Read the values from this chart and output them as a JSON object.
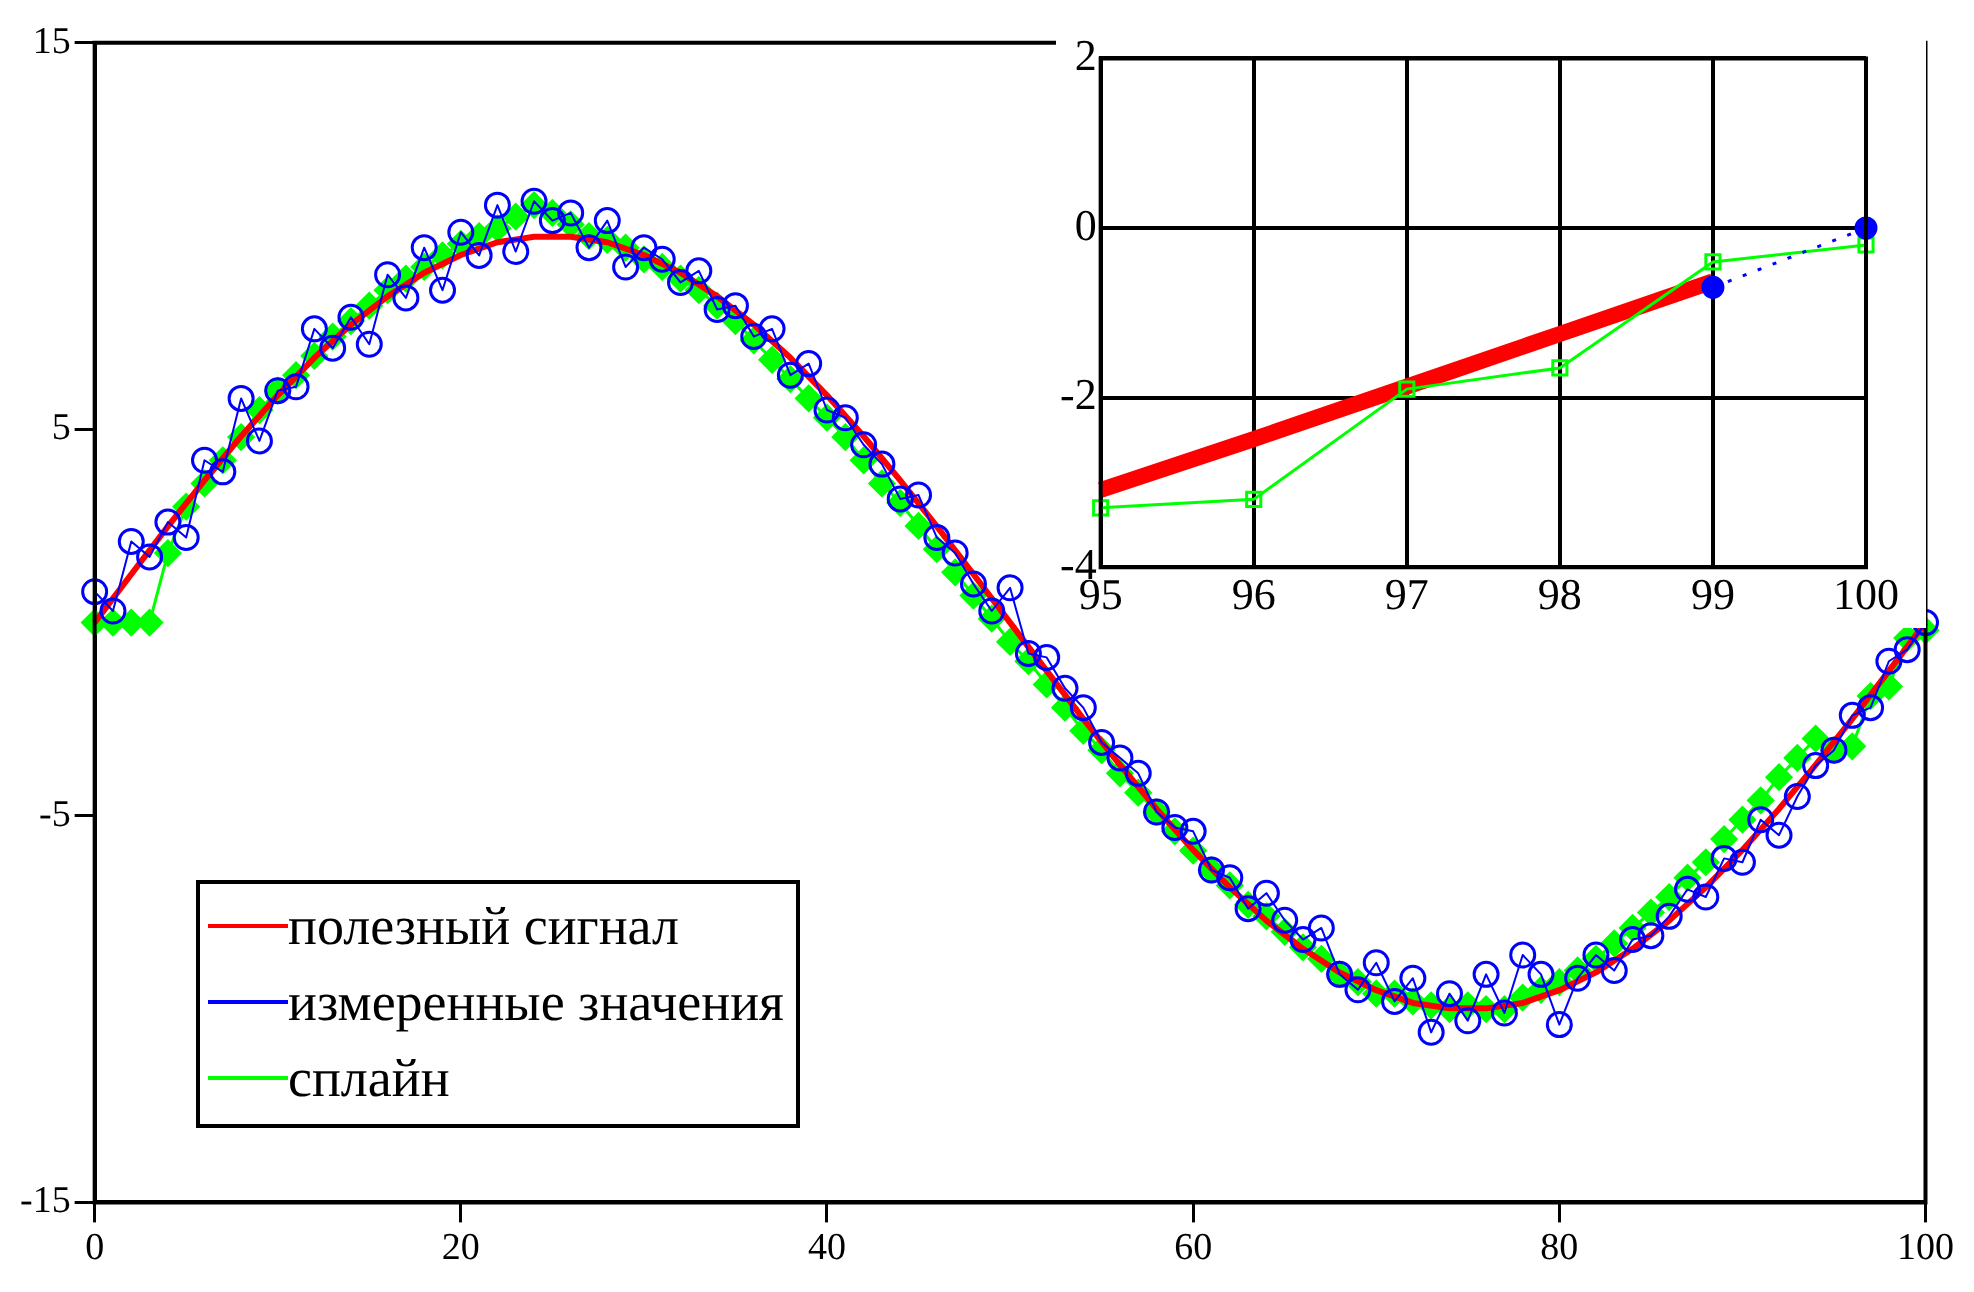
{
  "chart_data": [
    {
      "type": "line",
      "xlim": [
        0,
        100
      ],
      "xticks": [
        0,
        20,
        40,
        60,
        80,
        100
      ],
      "ylim": [
        -15,
        15
      ],
      "yticks": [
        -15,
        -5,
        5,
        15
      ],
      "grid": false,
      "legend": "bottom left",
      "series": [
        {
          "name": "полезный сигнал",
          "color": "#ff0000",
          "marker": "none",
          "line_style": "solid",
          "x": [
            0,
            2,
            4,
            6,
            8,
            10,
            12,
            14,
            16,
            18,
            20,
            22,
            24,
            26,
            28,
            30,
            32,
            34,
            36,
            38,
            40,
            42,
            44,
            46,
            48,
            50,
            52,
            54,
            56,
            58,
            60,
            62,
            64,
            66,
            68,
            70,
            72,
            74,
            76,
            78,
            80,
            82,
            84,
            86,
            88,
            90,
            92,
            94,
            96,
            98,
            100
          ],
          "values": [
            0,
            1.25,
            2.49,
            3.68,
            4.82,
            5.88,
            6.85,
            7.71,
            8.44,
            9.05,
            9.51,
            9.84,
            9.98,
            9.98,
            9.84,
            9.51,
            9.05,
            8.44,
            7.71,
            6.85,
            5.88,
            4.82,
            3.68,
            2.49,
            1.25,
            0,
            -1.25,
            -2.49,
            -3.68,
            -4.82,
            -5.88,
            -6.85,
            -7.71,
            -8.44,
            -9.05,
            -9.51,
            -9.84,
            -9.98,
            -9.98,
            -9.84,
            -9.51,
            -9.05,
            -8.44,
            -7.71,
            -6.85,
            -5.88,
            -4.82,
            -3.68,
            -2.49,
            -1.25,
            0
          ]
        },
        {
          "name": "измеренные значения",
          "color": "#0000ff",
          "marker": "circle",
          "line_style": "solid",
          "x": [
            0,
            1,
            2,
            3,
            4,
            5,
            6,
            7,
            8,
            9,
            10,
            11,
            12,
            13,
            14,
            15,
            16,
            17,
            18,
            19,
            20,
            21,
            22,
            23,
            24,
            25,
            26,
            27,
            28,
            29,
            30,
            31,
            32,
            33,
            34,
            35,
            36,
            37,
            38,
            39,
            40,
            41,
            42,
            43,
            44,
            45,
            46,
            47,
            48,
            49,
            50,
            51,
            52,
            53,
            54,
            55,
            56,
            57,
            58,
            59,
            60,
            61,
            62,
            63,
            64,
            65,
            66,
            67,
            68,
            69,
            70,
            71,
            72,
            73,
            74,
            75,
            76,
            77,
            78,
            79,
            80,
            81,
            82,
            83,
            84,
            85,
            86,
            87,
            88,
            89,
            90,
            91,
            92,
            93,
            94,
            95,
            96,
            97,
            98,
            99,
            100
          ],
          "values": [
            0.8,
            0.3,
            2.1,
            1.7,
            2.6,
            2.2,
            4.2,
            3.9,
            5.8,
            4.7,
            6.0,
            6.1,
            7.6,
            7.1,
            7.9,
            7.2,
            9.0,
            8.4,
            9.7,
            8.6,
            10.1,
            9.5,
            10.8,
            9.6,
            10.9,
            10.4,
            10.6,
            9.7,
            10.4,
            9.2,
            9.7,
            9.4,
            8.8,
            9.1,
            8.1,
            8.2,
            7.4,
            7.6,
            6.4,
            6.7,
            5.5,
            5.3,
            4.6,
            4.1,
            3.2,
            3.3,
            2.2,
            1.8,
            1.0,
            0.3,
            0.9,
            -0.8,
            -0.9,
            -1.7,
            -2.2,
            -3.1,
            -3.5,
            -3.9,
            -4.9,
            -5.3,
            -5.4,
            -6.4,
            -6.6,
            -7.4,
            -7.0,
            -7.7,
            -8.2,
            -7.9,
            -9.1,
            -9.5,
            -8.8,
            -9.8,
            -9.2,
            -10.6,
            -9.6,
            -10.3,
            -9.1,
            -10.1,
            -8.6,
            -9.1,
            -10.4,
            -9.2,
            -8.6,
            -9.0,
            -8.2,
            -8.1,
            -7.6,
            -6.9,
            -7.1,
            -6.1,
            -6.2,
            -5.1,
            -5.5,
            -4.5,
            -3.7,
            -3.3,
            -2.4,
            -2.2,
            -1.0,
            -0.7,
            0.0
          ]
        },
        {
          "name": "сплайн",
          "color": "#00ff00",
          "marker": "diamond",
          "line_style": "solid",
          "x": [
            0,
            1,
            2,
            3,
            4,
            5,
            6,
            7,
            8,
            9,
            10,
            11,
            12,
            13,
            14,
            15,
            16,
            17,
            18,
            19,
            20,
            21,
            22,
            23,
            24,
            25,
            26,
            27,
            28,
            29,
            30,
            31,
            32,
            33,
            34,
            35,
            36,
            37,
            38,
            39,
            40,
            41,
            42,
            43,
            44,
            45,
            46,
            47,
            48,
            49,
            50,
            51,
            52,
            53,
            54,
            55,
            56,
            57,
            58,
            59,
            60,
            61,
            62,
            63,
            64,
            65,
            66,
            67,
            68,
            69,
            70,
            71,
            72,
            73,
            74,
            75,
            76,
            77,
            78,
            79,
            80,
            81,
            82,
            83,
            84,
            85,
            86,
            87,
            88,
            89,
            90,
            91,
            92,
            93,
            94,
            95,
            96,
            97,
            98,
            99,
            100
          ],
          "values": [
            0,
            0,
            0,
            0,
            1.8,
            3.0,
            3.6,
            4.2,
            4.8,
            5.5,
            6.0,
            6.4,
            6.9,
            7.4,
            7.8,
            8.2,
            8.6,
            8.9,
            9.2,
            9.5,
            9.8,
            10.0,
            10.2,
            10.5,
            10.8,
            10.6,
            10.3,
            10.0,
            9.9,
            9.7,
            9.4,
            9.2,
            8.9,
            8.6,
            8.2,
            7.8,
            7.3,
            6.8,
            6.3,
            5.8,
            5.3,
            4.8,
            4.2,
            3.6,
            3.1,
            2.5,
            1.9,
            1.3,
            0.7,
            0.1,
            -0.5,
            -1.0,
            -1.6,
            -2.2,
            -2.8,
            -3.3,
            -3.9,
            -4.4,
            -4.9,
            -5.4,
            -5.9,
            -6.4,
            -6.8,
            -7.3,
            -7.6,
            -8.0,
            -8.4,
            -8.7,
            -9.1,
            -9.3,
            -9.6,
            -9.6,
            -9.8,
            -9.9,
            -10.0,
            -9.9,
            -10.0,
            -10.0,
            -9.7,
            -9.5,
            -9.3,
            -9.0,
            -8.7,
            -8.3,
            -7.9,
            -7.5,
            -7.1,
            -6.6,
            -6.2,
            -5.6,
            -5.1,
            -4.6,
            -4.0,
            -3.5,
            -3.0,
            -3.3,
            -3.2,
            -1.9,
            -1.65,
            -0.4,
            -0.2
          ]
        }
      ]
    },
    {
      "type": "line",
      "xlim": [
        95,
        100
      ],
      "xticks": [
        95,
        96,
        97,
        98,
        99,
        100
      ],
      "ylim": [
        -4,
        2
      ],
      "yticks": [
        -4,
        -2,
        0,
        2
      ],
      "grid": true,
      "series": [
        {
          "color": "#ff0000",
          "marker": "none",
          "line_style": "solid",
          "x": [
            95,
            96,
            97,
            98,
            99
          ],
          "values": [
            -3.09,
            -2.49,
            -1.87,
            -1.25,
            -0.63
          ]
        },
        {
          "color": "#0000ff",
          "marker": "circle",
          "line_style": "dotted",
          "x": [
            99,
            100
          ],
          "values": [
            -0.7,
            0.0
          ]
        },
        {
          "color": "#00ff00",
          "marker": "square",
          "line_style": "solid",
          "x": [
            95,
            96,
            97,
            98,
            99,
            100
          ],
          "values": [
            -3.3,
            -3.2,
            -1.9,
            -1.65,
            -0.4,
            -0.2
          ]
        }
      ]
    }
  ]
}
